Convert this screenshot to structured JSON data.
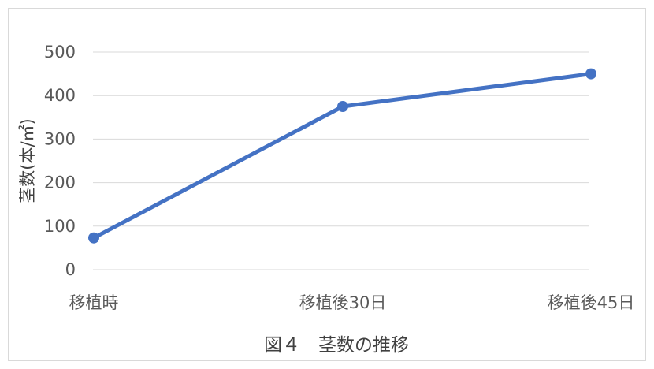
{
  "chart_data": {
    "type": "line",
    "categories": [
      "移植時",
      "移植後30日",
      "移植後45日"
    ],
    "series": [
      {
        "values": [
          73,
          375,
          450
        ]
      }
    ],
    "ylabel": "茎数(本/㎡)",
    "yticks": [
      "0",
      "100",
      "200",
      "300",
      "400",
      "500"
    ],
    "ylim": [
      0,
      500
    ],
    "grid": true,
    "legend": "none",
    "caption": "図４　茎数の推移",
    "colors": {
      "line": "#4472c4",
      "grid": "#d9d9d9"
    }
  }
}
